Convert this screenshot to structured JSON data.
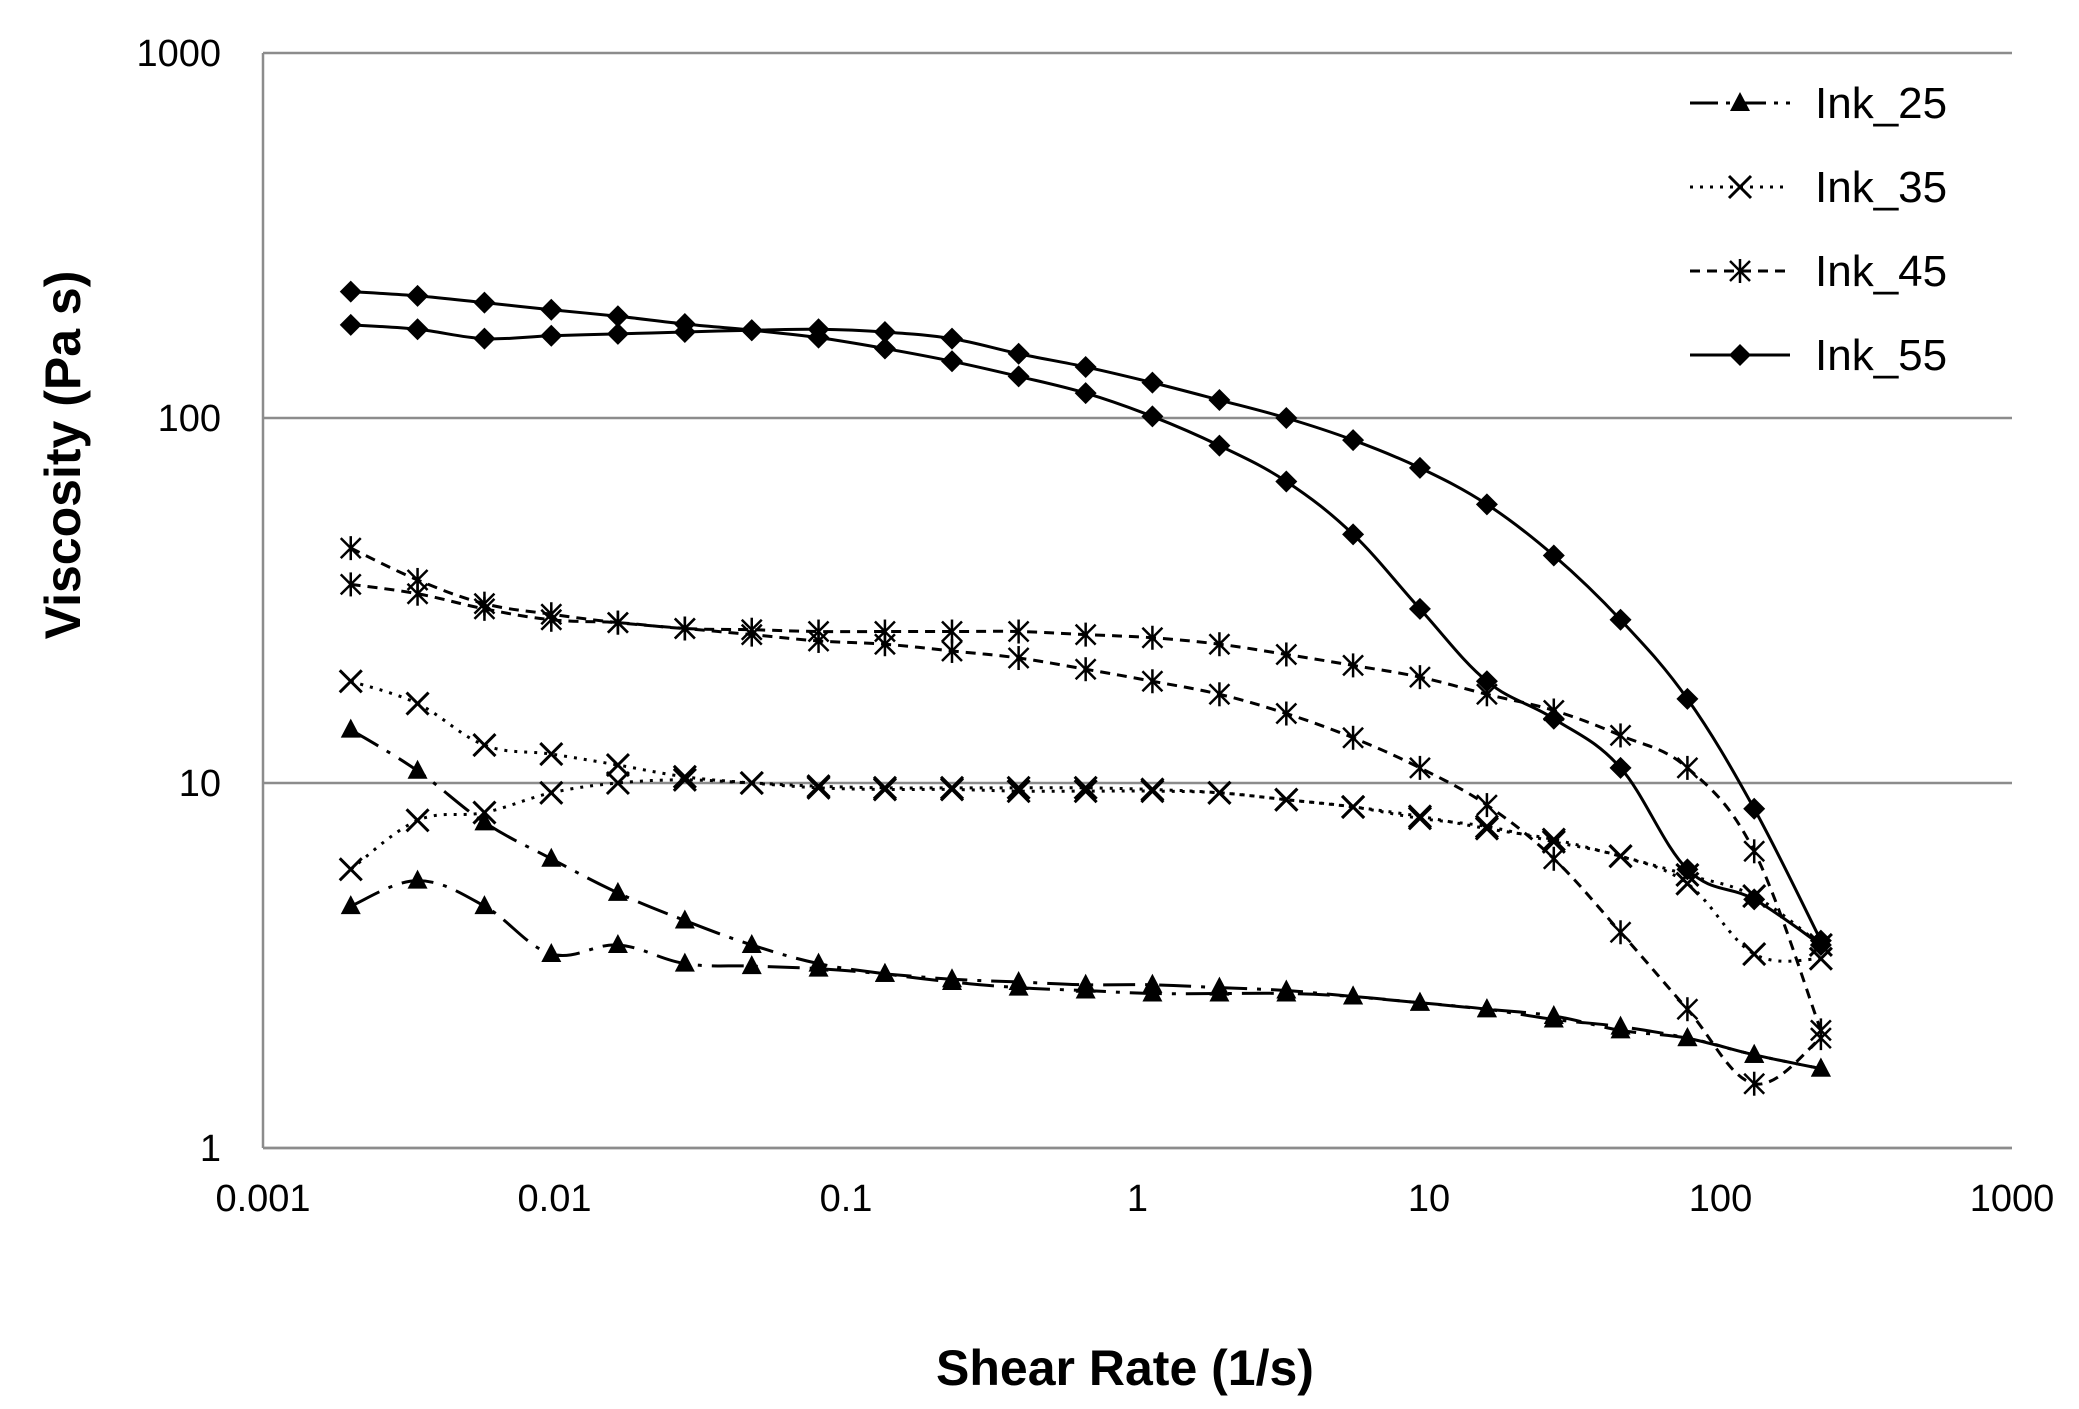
{
  "chart_data": {
    "type": "line",
    "title": "",
    "xlabel": "Shear Rate (1/s)",
    "ylabel": "Viscosity (Pa s)",
    "xscale": "log",
    "yscale": "log",
    "xlim": [
      0.001,
      1000
    ],
    "ylim": [
      1,
      1000
    ],
    "x_tick_labels": [
      "0.001",
      "0.01",
      "0.1",
      "1",
      "10",
      "100",
      "1000"
    ],
    "y_tick_labels": [
      "1",
      "10",
      "100",
      "1000"
    ],
    "grid": "horizontal major",
    "legend_position": "top-right",
    "series": [
      {
        "name": "Ink_25",
        "marker": "triangle",
        "line_style": "long-dash",
        "forward": {
          "x": [
            0.002,
            0.00339,
            0.00575,
            0.00975,
            0.0165,
            0.028,
            0.0475,
            0.0805,
            0.136,
            0.231,
            0.391,
            0.664,
            1.125,
            1.91,
            3.24,
            5.49,
            9.31,
            15.8,
            26.8,
            45.4,
            77,
            130.5,
            221
          ],
          "y": [
            4.6,
            5.4,
            4.6,
            3.4,
            3.6,
            3.2,
            3.15,
            3.1,
            3.0,
            2.9,
            2.85,
            2.8,
            2.8,
            2.75,
            2.7,
            2.6,
            2.5,
            2.4,
            2.3,
            2.1,
            2.0,
            1.8,
            1.65
          ]
        },
        "backward": {
          "x": [
            0.002,
            0.00339,
            0.00575,
            0.00975,
            0.0165,
            0.028,
            0.0475,
            0.0805,
            0.136,
            0.231,
            0.391,
            0.664,
            1.125,
            1.91,
            3.24,
            5.49,
            9.31,
            15.8,
            26.8,
            45.4,
            77,
            130.5,
            221
          ],
          "y": [
            14,
            10.8,
            7.8,
            6.2,
            5.0,
            4.2,
            3.6,
            3.2,
            3.0,
            2.85,
            2.75,
            2.7,
            2.65,
            2.65,
            2.65,
            2.6,
            2.5,
            2.4,
            2.25,
            2.15,
            2.0,
            1.8,
            1.65
          ]
        }
      },
      {
        "name": "Ink_35",
        "marker": "x",
        "line_style": "dotted",
        "forward": {
          "x": [
            0.002,
            0.00339,
            0.00575,
            0.00975,
            0.0165,
            0.028,
            0.0475,
            0.0805,
            0.136,
            0.231,
            0.391,
            0.664,
            1.125,
            1.91,
            3.24,
            5.49,
            9.31,
            15.8,
            26.8,
            45.4,
            77,
            130.5,
            221
          ],
          "y": [
            5.8,
            7.9,
            8.3,
            9.4,
            10.0,
            10.2,
            10.0,
            9.8,
            9.7,
            9.7,
            9.7,
            9.7,
            9.6,
            9.4,
            9.0,
            8.6,
            8.1,
            7.5,
            7.0,
            6.3,
            5.6,
            4.9,
            3.6
          ]
        },
        "backward": {
          "x": [
            0.002,
            0.00339,
            0.00575,
            0.00975,
            0.0165,
            0.028,
            0.0475,
            0.0805,
            0.136,
            0.231,
            0.391,
            0.664,
            1.125,
            1.91,
            3.24,
            5.49,
            9.31,
            15.8,
            26.8,
            45.4,
            77,
            130.5,
            221
          ],
          "y": [
            19,
            16.5,
            12.7,
            12.0,
            11.2,
            10.4,
            10.0,
            9.7,
            9.6,
            9.6,
            9.5,
            9.5,
            9.5,
            9.4,
            9.0,
            8.6,
            8.0,
            7.6,
            6.9,
            6.3,
            5.3,
            3.4,
            3.3
          ]
        }
      },
      {
        "name": "Ink_45",
        "marker": "asterisk",
        "line_style": "short-dash",
        "forward": {
          "x": [
            0.002,
            0.00339,
            0.00575,
            0.00975,
            0.0165,
            0.028,
            0.0475,
            0.0805,
            0.136,
            0.231,
            0.391,
            0.664,
            1.125,
            1.91,
            3.24,
            5.49,
            9.31,
            15.8,
            26.8,
            45.4,
            77,
            130.5,
            221
          ],
          "y": [
            35,
            33,
            30,
            28,
            27.5,
            26.5,
            26.3,
            26.0,
            26.0,
            26.0,
            26.0,
            25.5,
            25.0,
            24.0,
            22.5,
            21.0,
            19.5,
            17.5,
            15.8,
            13.5,
            11.0,
            6.5,
            2.1
          ]
        },
        "backward": {
          "x": [
            0.002,
            0.00339,
            0.00575,
            0.00975,
            0.0165,
            0.028,
            0.0475,
            0.0805,
            0.136,
            0.231,
            0.391,
            0.664,
            1.125,
            1.91,
            3.24,
            5.49,
            9.31,
            15.8,
            26.8,
            45.4,
            77,
            130.5,
            221
          ],
          "y": [
            44,
            36,
            31,
            29,
            27.5,
            26.5,
            25.5,
            24.5,
            24.0,
            23.0,
            22.0,
            20.5,
            19.0,
            17.5,
            15.5,
            13.3,
            11.0,
            8.7,
            6.2,
            3.9,
            2.4,
            1.5,
            2.0
          ]
        }
      },
      {
        "name": "Ink_55",
        "marker": "diamond",
        "line_style": "solid",
        "forward": {
          "x": [
            0.002,
            0.00339,
            0.00575,
            0.00975,
            0.0165,
            0.028,
            0.0475,
            0.0805,
            0.136,
            0.231,
            0.391,
            0.664,
            1.125,
            1.91,
            3.24,
            5.49,
            9.31,
            15.8,
            26.8,
            45.4,
            77,
            130.5,
            221
          ],
          "y": [
            180,
            175,
            165,
            168,
            170,
            172,
            174,
            175,
            172,
            165,
            150,
            138,
            125,
            112,
            100,
            87,
            73,
            58,
            42,
            28,
            17,
            8.5,
            3.7
          ]
        },
        "backward": {
          "x": [
            0.002,
            0.00339,
            0.00575,
            0.00975,
            0.0165,
            0.028,
            0.0475,
            0.0805,
            0.136,
            0.231,
            0.391,
            0.664,
            1.125,
            1.91,
            3.24,
            5.49,
            9.31,
            15.8,
            26.8,
            45.4,
            77,
            130.5,
            221
          ],
          "y": [
            222,
            216,
            207,
            198,
            190,
            181,
            174,
            166,
            155,
            143,
            130,
            117,
            101,
            84,
            67,
            48,
            30,
            19,
            15,
            11,
            5.8,
            4.8,
            3.6
          ]
        }
      }
    ]
  }
}
